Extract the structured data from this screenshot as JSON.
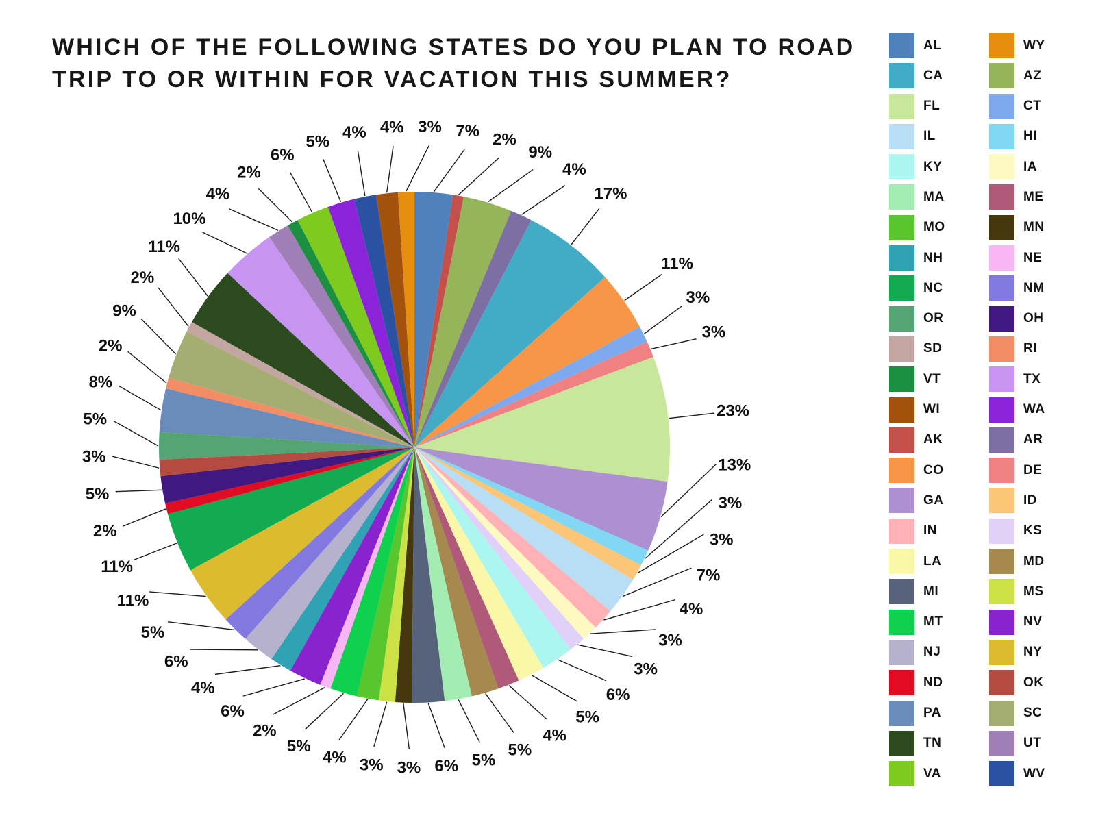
{
  "title": {
    "line1": "WHICH OF THE FOLLOWING STATES DO YOU PLAN TO ROAD",
    "line2": "TRIP TO OR WITHIN FOR VACATION THIS SUMMER?"
  },
  "colors": {
    "background": "#ffffff",
    "text": "#171717",
    "leader_line": "#1c1c1c"
  },
  "chart_data": {
    "type": "pie",
    "title": "WHICH OF THE FOLLOWING STATES DO YOU PLAN TO ROAD TRIP TO OR WITHIN FOR VACATION THIS SUMMER?",
    "unit": "%",
    "start_angle": "12-oclock",
    "direction": "clockwise",
    "order_note": "slices clockwise, alphabetical by full state name",
    "slices": [
      {
        "label": "AL",
        "value": 7,
        "color": "#4f81bd"
      },
      {
        "label": "AK",
        "value": 2,
        "color": "#c4504b"
      },
      {
        "label": "AZ",
        "value": 9,
        "color": "#96b55b"
      },
      {
        "label": "AR",
        "value": 4,
        "color": "#7d6ea3"
      },
      {
        "label": "CA",
        "value": 17,
        "color": "#42abc6"
      },
      {
        "label": "CO",
        "value": 11,
        "color": "#f79646"
      },
      {
        "label": "CT",
        "value": 3,
        "color": "#7fa9ee"
      },
      {
        "label": "DE",
        "value": 3,
        "color": "#f08183"
      },
      {
        "label": "FL",
        "value": 23,
        "color": "#c9e79b"
      },
      {
        "label": "GA",
        "value": 13,
        "color": "#ad90d1"
      },
      {
        "label": "HI",
        "value": 3,
        "color": "#82d8f4"
      },
      {
        "label": "ID",
        "value": 3,
        "color": "#fbc677"
      },
      {
        "label": "IL",
        "value": 7,
        "color": "#b7def5"
      },
      {
        "label": "IN",
        "value": 4,
        "color": "#ffb1b6"
      },
      {
        "label": "IA",
        "value": 3,
        "color": "#fdfac1"
      },
      {
        "label": "KS",
        "value": 3,
        "color": "#e1d0f8"
      },
      {
        "label": "KY",
        "value": 6,
        "color": "#abf7f0"
      },
      {
        "label": "LA",
        "value": 5,
        "color": "#fbf7a9"
      },
      {
        "label": "ME",
        "value": 4,
        "color": "#b05a79"
      },
      {
        "label": "MD",
        "value": 5,
        "color": "#a5894f"
      },
      {
        "label": "MA",
        "value": 5,
        "color": "#a3edb2"
      },
      {
        "label": "MI",
        "value": 6,
        "color": "#57627b"
      },
      {
        "label": "MN",
        "value": 3,
        "color": "#45380f"
      },
      {
        "label": "MS",
        "value": 3,
        "color": "#cbe146"
      },
      {
        "label": "MO",
        "value": 4,
        "color": "#58c62c"
      },
      {
        "label": "MT",
        "value": 5,
        "color": "#10d14e"
      },
      {
        "label": "NE",
        "value": 2,
        "color": "#f8b7f4"
      },
      {
        "label": "NV",
        "value": 6,
        "color": "#8823cf"
      },
      {
        "label": "NH",
        "value": 4,
        "color": "#2fa3b3"
      },
      {
        "label": "NJ",
        "value": 6,
        "color": "#b6b1cd"
      },
      {
        "label": "NM",
        "value": 5,
        "color": "#8179df"
      },
      {
        "label": "NY",
        "value": 11,
        "color": "#ddbb2e"
      },
      {
        "label": "NC",
        "value": 11,
        "color": "#12ab51"
      },
      {
        "label": "ND",
        "value": 2,
        "color": "#e20c22"
      },
      {
        "label": "OH",
        "value": 5,
        "color": "#41187f"
      },
      {
        "label": "OK",
        "value": 3,
        "color": "#b34b41"
      },
      {
        "label": "OR",
        "value": 5,
        "color": "#55a473"
      },
      {
        "label": "PA",
        "value": 8,
        "color": "#6a8cba"
      },
      {
        "label": "RI",
        "value": 2,
        "color": "#f38d66"
      },
      {
        "label": "SC",
        "value": 9,
        "color": "#a5ae72"
      },
      {
        "label": "SD",
        "value": 2,
        "color": "#c3a5a1"
      },
      {
        "label": "TN",
        "value": 11,
        "color": "#2b4b1e"
      },
      {
        "label": "TX",
        "value": 10,
        "color": "#c795f1"
      },
      {
        "label": "UT",
        "value": 4,
        "color": "#9f7fb6"
      },
      {
        "label": "VT",
        "value": 2,
        "color": "#1c9041"
      },
      {
        "label": "VA",
        "value": 6,
        "color": "#7fca1f"
      },
      {
        "label": "WA",
        "value": 5,
        "color": "#8b24d8"
      },
      {
        "label": "WV",
        "value": 4,
        "color": "#2b52a2"
      },
      {
        "label": "WI",
        "value": 4,
        "color": "#a3520e"
      },
      {
        "label": "WY",
        "value": 3,
        "color": "#e68e0d"
      }
    ],
    "legend_position": "right",
    "legend_columns": [
      [
        "AL",
        "CA",
        "FL",
        "IL",
        "KY",
        "MA",
        "MO",
        "NH",
        "NC",
        "OR",
        "SD",
        "VT",
        "WI",
        "AK",
        "CO",
        "GA",
        "IN",
        "LA",
        "MI",
        "MT",
        "NJ",
        "ND",
        "PA",
        "TN",
        "VA"
      ],
      [
        "WY",
        "AZ",
        "CT",
        "HI",
        "IA",
        "ME",
        "MN",
        "NE",
        "NM",
        "OH",
        "RI",
        "TX",
        "WA",
        "AR",
        "DE",
        "ID",
        "KS",
        "MD",
        "MS",
        "NV",
        "NY",
        "OK",
        "SC",
        "UT",
        "WV"
      ]
    ]
  }
}
